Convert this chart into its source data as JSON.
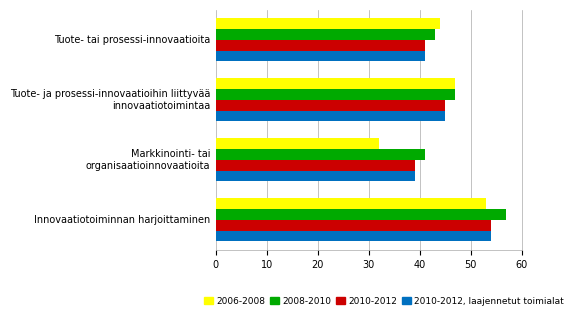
{
  "categories": [
    "Innovaatiotoiminnan harjoittaminen",
    "Markkinointi- tai\norganisaatioinnovaatioita",
    "Tuote- ja prosessi-innovaatioihin liittyvää\ninnovaatiotoimintaa",
    "Tuote- tai prosessi-innovaatioita"
  ],
  "series_keys": [
    "2006-2008",
    "2008-2010",
    "2010-2012",
    "2010-2012, laajennetut toimialat"
  ],
  "series_values": {
    "2006-2008": [
      53,
      32,
      47,
      44
    ],
    "2008-2010": [
      57,
      41,
      47,
      43
    ],
    "2010-2012": [
      54,
      39,
      45,
      41
    ],
    "2010-2012, laajennetut toimialat": [
      54,
      39,
      45,
      41
    ]
  },
  "colors": {
    "2006-2008": "#ffff00",
    "2008-2010": "#00aa00",
    "2010-2012": "#cc0000",
    "2010-2012, laajennetut toimialat": "#0070c0"
  },
  "xlim": [
    0,
    60
  ],
  "xticks": [
    0,
    10,
    20,
    30,
    40,
    50,
    60
  ],
  "bar_height": 0.18,
  "background_color": "#ffffff",
  "grid_color": "#aaaaaa",
  "legend_labels": [
    "2006-2008",
    "2008-2010",
    "2010-2012",
    "2010-2012, laajennetut toimialat"
  ],
  "ytick_fontsize": 7,
  "xtick_fontsize": 7,
  "legend_fontsize": 6.5
}
